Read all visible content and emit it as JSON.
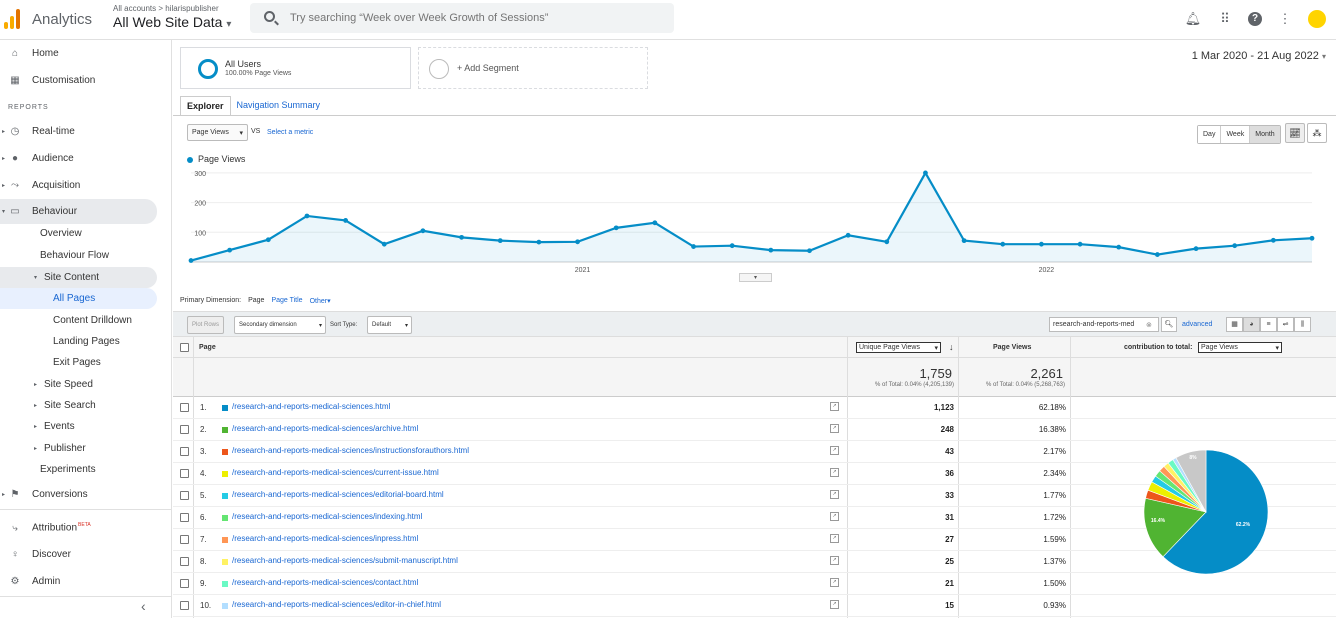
{
  "topbar": {
    "brand": "Analytics",
    "account_crumb": "All accounts > hilarispublisher",
    "view_name": "All Web Site Data",
    "view_caret": "▾",
    "search_placeholder": "Try searching “Week over Week Growth of Sessions”",
    "icons": [
      "bell-icon",
      "apps-grid-icon",
      "help-icon",
      "more-vert-icon"
    ]
  },
  "sidebar": {
    "home": "Home",
    "customisation": "Customisation",
    "reports_label": "REPORTS",
    "realtime": "Real-time",
    "audience": "Audience",
    "acquisition": "Acquisition",
    "behaviour": "Behaviour",
    "overview": "Overview",
    "behaviour_flow": "Behaviour Flow",
    "site_content": "Site Content",
    "all_pages": "All Pages",
    "content_drilldown": "Content Drilldown",
    "landing_pages": "Landing Pages",
    "exit_pages": "Exit Pages",
    "site_speed": "Site Speed",
    "site_search": "Site Search",
    "events": "Events",
    "publisher": "Publisher",
    "experiments": "Experiments",
    "conversions": "Conversions",
    "attribution": "Attribution",
    "attribution_badge": "BETA",
    "discover": "Discover",
    "admin": "Admin",
    "collapse": "‹"
  },
  "segments": {
    "all_users": "All Users",
    "all_users_sub": "100.00% Page Views",
    "add_segment": "+ Add Segment"
  },
  "date_range": "1 Mar 2020 - 21 Aug 2022",
  "tabs": {
    "explorer": "Explorer",
    "navigation_summary": "Navigation Summary"
  },
  "explorer": {
    "metric": "Page Views",
    "vs": "VS",
    "select_metric": "Select a metric",
    "periods": [
      "Day",
      "Week",
      "Month"
    ],
    "legend": "Page Views"
  },
  "chart_data": {
    "type": "area",
    "series": [
      {
        "name": "Page Views",
        "values": [
          5,
          40,
          75,
          155,
          140,
          60,
          105,
          83,
          72,
          67,
          68,
          115,
          132,
          52,
          55,
          40,
          38,
          90,
          68,
          300,
          72,
          60,
          60,
          60,
          50,
          25,
          45,
          55,
          73,
          80
        ]
      }
    ],
    "x_tick_labels": [
      "2021",
      "2022"
    ],
    "y_tick_labels": [
      "100",
      "200",
      "300"
    ],
    "ylim": [
      0,
      330
    ],
    "color": "#058dc7",
    "grid": true
  },
  "primary_dimension": {
    "label": "Primary Dimension:",
    "page": "Page",
    "page_title": "Page Title",
    "other": "Other"
  },
  "toolbar": {
    "plot_rows": "Plot Rows",
    "secondary_dimension": "Secondary dimension",
    "sort_type_label": "Sort Type:",
    "sort_type": "Default",
    "search_value": "research-and-reports-med",
    "advanced": "advanced"
  },
  "table": {
    "col_page": "Page",
    "col_upv": "Unique Page Views",
    "col_pv": "Page Views",
    "col_contrib": "contribution to total:",
    "contrib_metric": "Page Views",
    "totals": {
      "upv": "1,759",
      "upv_sub": "% of Total: 0.04% (4,205,139)",
      "pv": "2,261",
      "pv_sub": "% of Total: 0.04% (5,268,763)"
    },
    "rows": [
      {
        "idx": "1.",
        "page": "/research-and-reports-medical-sciences.html",
        "upv": "1,123",
        "pv": "62.18%",
        "color": "#058dc7"
      },
      {
        "idx": "2.",
        "page": "/research-and-reports-medical-sciences/archive.html",
        "upv": "248",
        "pv": "16.38%",
        "color": "#50b432"
      },
      {
        "idx": "3.",
        "page": "/research-and-reports-medical-sciences/instructionsforauthors.html",
        "upv": "43",
        "pv": "2.17%",
        "color": "#ed561b"
      },
      {
        "idx": "4.",
        "page": "/research-and-reports-medical-sciences/current-issue.html",
        "upv": "36",
        "pv": "2.34%",
        "color": "#edef00"
      },
      {
        "idx": "5.",
        "page": "/research-and-reports-medical-sciences/editorial-board.html",
        "upv": "33",
        "pv": "1.77%",
        "color": "#24cbe5"
      },
      {
        "idx": "6.",
        "page": "/research-and-reports-medical-sciences/indexing.html",
        "upv": "31",
        "pv": "1.72%",
        "color": "#64e572"
      },
      {
        "idx": "7.",
        "page": "/research-and-reports-medical-sciences/inpress.html",
        "upv": "27",
        "pv": "1.59%",
        "color": "#ff9655"
      },
      {
        "idx": "8.",
        "page": "/research-and-reports-medical-sciences/submit-manuscript.html",
        "upv": "25",
        "pv": "1.37%",
        "color": "#fff263"
      },
      {
        "idx": "9.",
        "page": "/research-and-reports-medical-sciences/contact.html",
        "upv": "21",
        "pv": "1.50%",
        "color": "#6af9c4"
      },
      {
        "idx": "10.",
        "page": "/research-and-reports-medical-sciences/editor-in-chief.html",
        "upv": "15",
        "pv": "0.93%",
        "color": "#b2deff"
      }
    ]
  },
  "pie": {
    "labels": [
      "62.2%",
      "16.4%",
      "8%"
    ],
    "slices": [
      62.18,
      16.38,
      2.17,
      2.34,
      1.77,
      1.72,
      1.59,
      1.37,
      1.5,
      0.93,
      8.05
    ],
    "colors": [
      "#058dc7",
      "#50b432",
      "#ed561b",
      "#edef00",
      "#24cbe5",
      "#64e572",
      "#ff9655",
      "#fff263",
      "#6af9c4",
      "#b2deff",
      "#c8c8c8"
    ]
  }
}
